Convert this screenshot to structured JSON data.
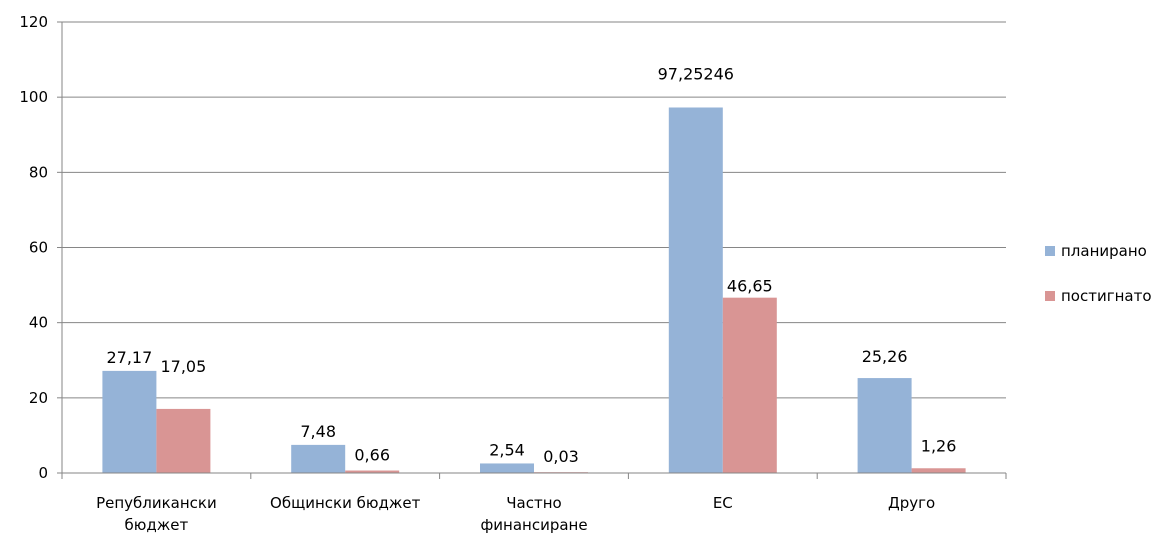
{
  "chart_data": {
    "type": "bar",
    "title": "",
    "xlabel": "",
    "ylabel": "",
    "categories": [
      [
        "Републикански",
        "бюджет"
      ],
      [
        "Общински бюджет"
      ],
      [
        "Частно",
        "финансиране"
      ],
      [
        "ЕС"
      ],
      [
        "Друго"
      ]
    ],
    "series": [
      {
        "name": "планирано",
        "color": "#95b3d7",
        "values": [
          27.17,
          7.48,
          2.54,
          97.25246,
          25.26
        ],
        "labels": [
          "27,17",
          "7,48",
          "2,54",
          "97,25246",
          "25,26"
        ]
      },
      {
        "name": "постигнато",
        "color": "#d99594",
        "values": [
          17.05,
          0.66,
          0.03,
          46.65,
          1.26
        ],
        "labels": [
          "17,05",
          "0,66",
          "0,03",
          "46,65",
          "1,26"
        ]
      }
    ],
    "ylim": [
      0,
      120
    ],
    "yticks": [
      0,
      20,
      40,
      60,
      80,
      100,
      120
    ],
    "grid": true,
    "legend": "right"
  }
}
